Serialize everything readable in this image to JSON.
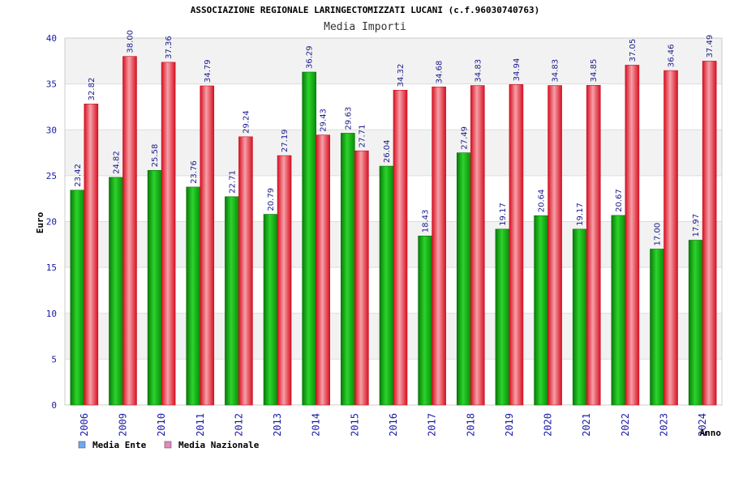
{
  "chart_data": {
    "type": "bar",
    "title": "ASSOCIAZIONE REGIONALE LARINGECTOMIZZATI LUCANI (c.f.96030740763)",
    "subtitle": "Media Importi",
    "ylabel": "Euro",
    "xlabel": "Anno",
    "ylim": [
      0,
      40
    ],
    "yticks": [
      0,
      5,
      10,
      15,
      20,
      25,
      30,
      35,
      40
    ],
    "grid": true,
    "legend_position": "bottom-left",
    "categories": [
      "2006",
      "2009",
      "2010",
      "2011",
      "2012",
      "2013",
      "2014",
      "2015",
      "2016",
      "2017",
      "2018",
      "2019",
      "2020",
      "2021",
      "2022",
      "2023",
      "2024"
    ],
    "series": [
      {
        "name": "Media Ente",
        "legend_color": "#6fa8f0",
        "bar_color": "#19b219",
        "values": [
          23.42,
          24.82,
          25.58,
          23.76,
          22.71,
          20.79,
          36.29,
          29.63,
          26.04,
          18.43,
          27.49,
          19.17,
          20.64,
          19.17,
          20.67,
          17.0,
          17.97
        ],
        "labels": [
          "23.42",
          "24.82",
          "25.58",
          "23.76",
          "22.71",
          "20.79",
          "36.29",
          "29.63",
          "26.04",
          "18.43",
          "27.49",
          "19.17",
          "20.64",
          "19.17",
          "20.67",
          "17.00",
          "17.97"
        ]
      },
      {
        "name": "Media Nazionale",
        "legend_color": "#e08ab8",
        "bar_color": "#ee2233",
        "values": [
          32.82,
          38.0,
          37.36,
          34.79,
          29.24,
          27.19,
          29.43,
          27.71,
          34.32,
          34.68,
          34.83,
          34.94,
          34.83,
          34.85,
          37.05,
          36.46,
          37.49
        ],
        "labels": [
          "32.82",
          "38.00",
          "37.36",
          "34.79",
          "29.24",
          "27.19",
          "29.43",
          "27.71",
          "34.32",
          "34.68",
          "34.83",
          "34.94",
          "34.83",
          "34.85",
          "37.05",
          "36.46",
          "37.49"
        ]
      }
    ]
  }
}
